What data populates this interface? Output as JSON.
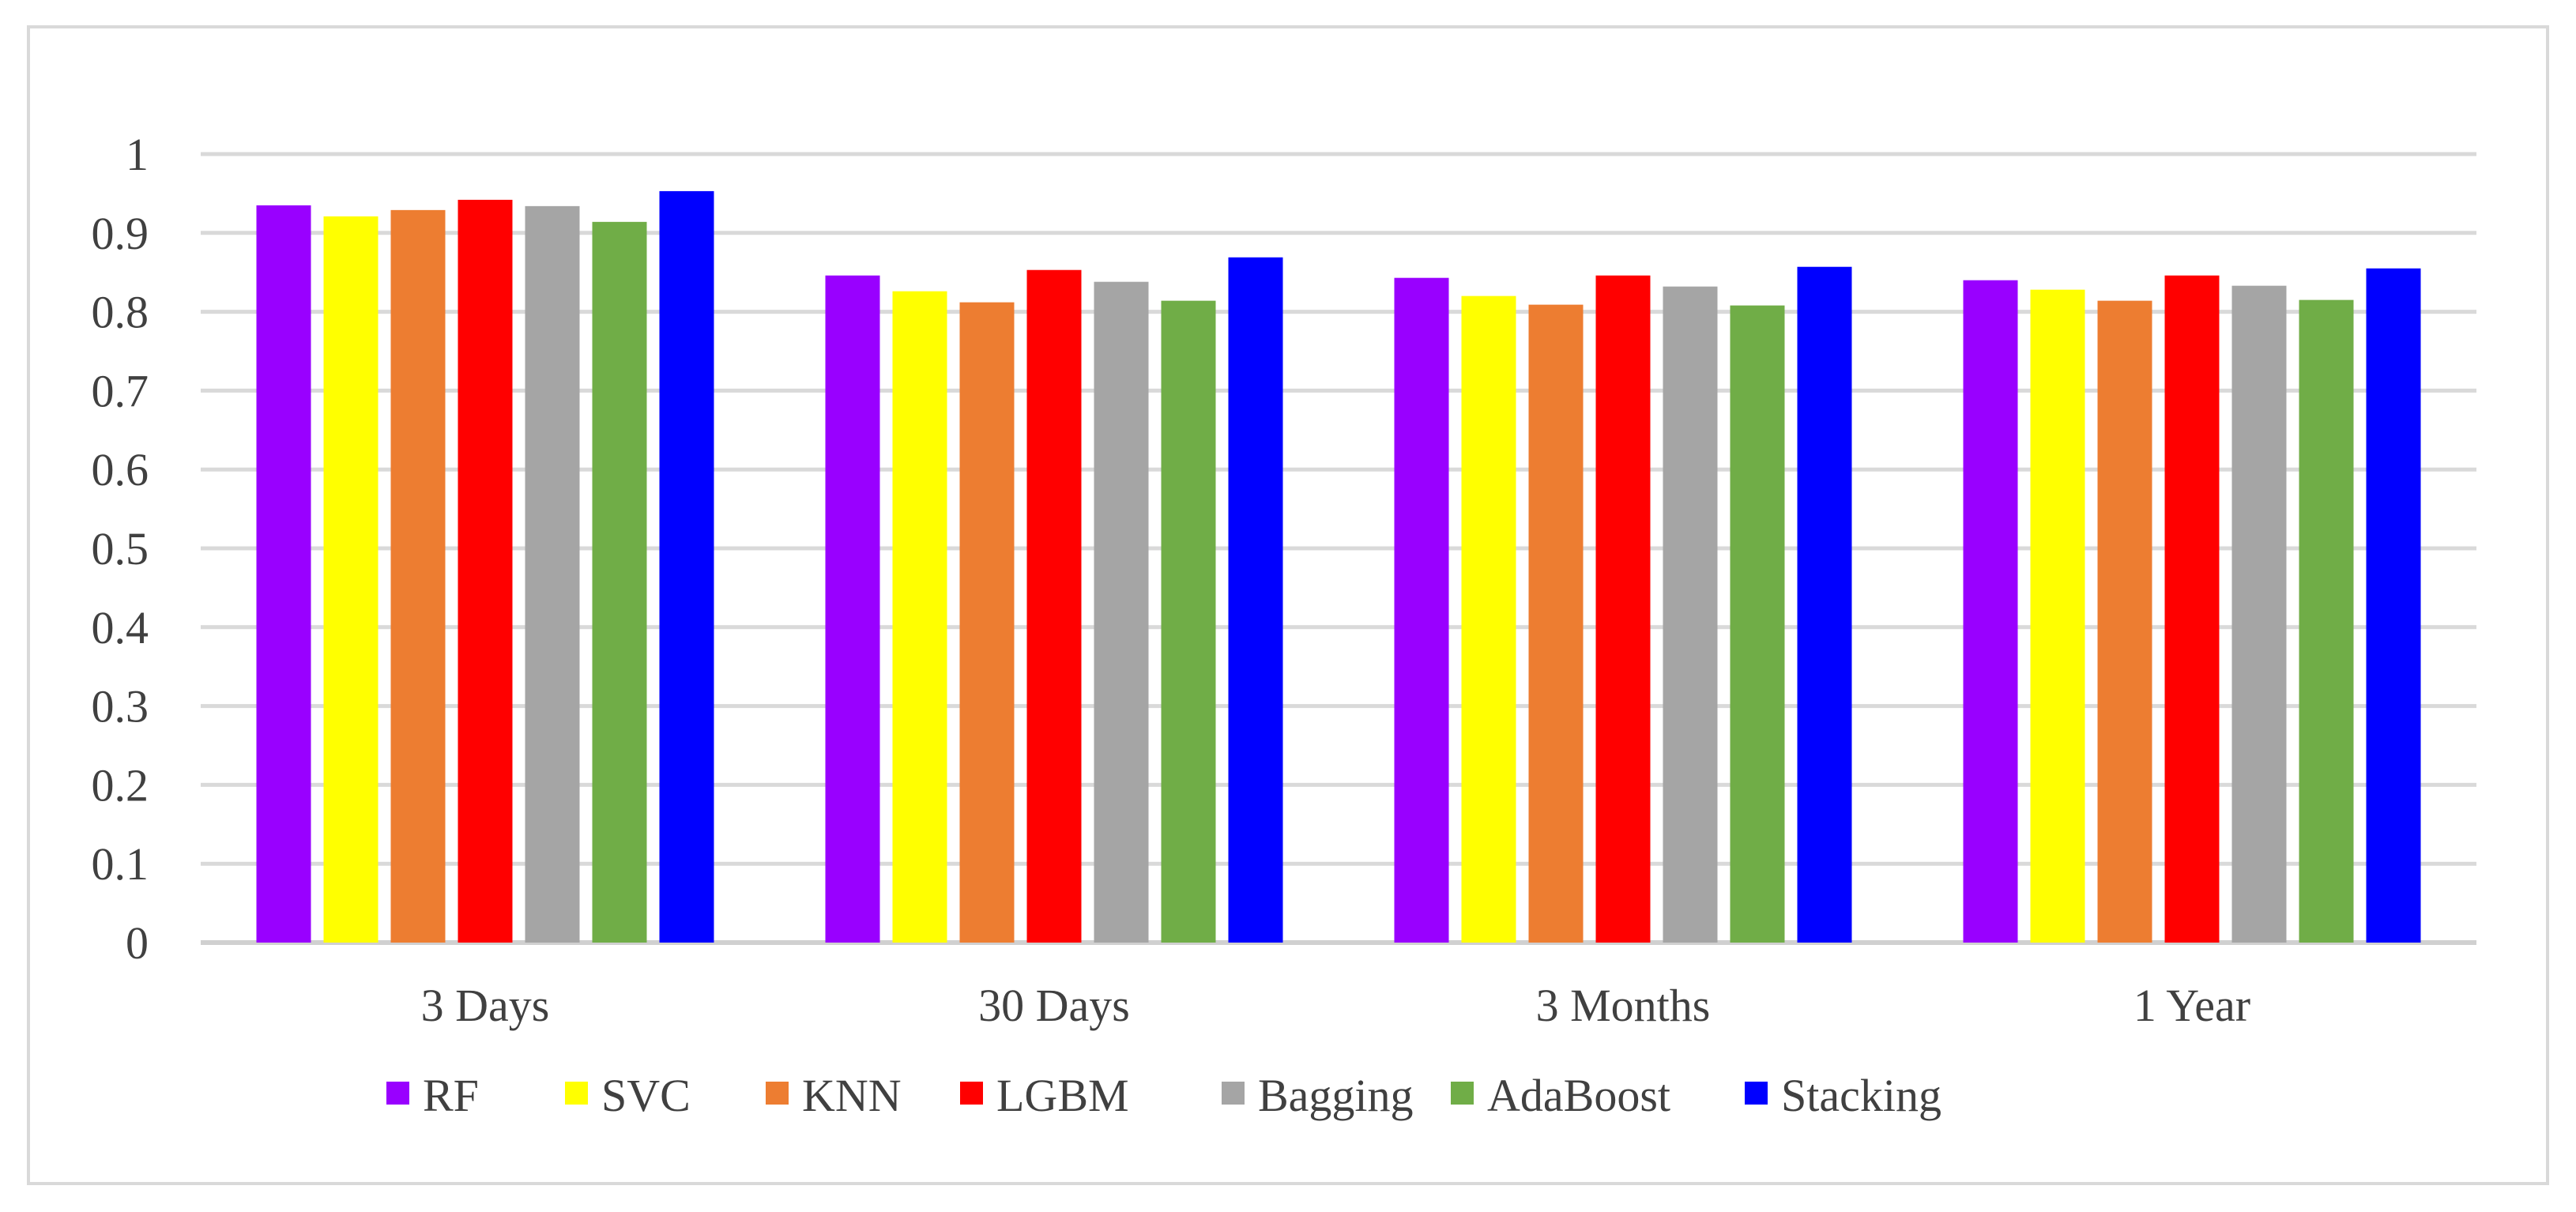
{
  "chart_data": {
    "type": "bar",
    "title": "",
    "xlabel": "",
    "ylabel": "",
    "categories": [
      "3 Days",
      "30 Days",
      "3 Months",
      "1 Year"
    ],
    "ylim": [
      0,
      1
    ],
    "yticks": [
      "0",
      "0.1",
      "0.2",
      "0.3",
      "0.4",
      "0.5",
      "0.6",
      "0.7",
      "0.8",
      "0.9",
      "1"
    ],
    "grid": true,
    "legend_position": "bottom",
    "series": [
      {
        "name": "RF",
        "color": "#9900FF",
        "values": [
          0.935,
          0.846,
          0.843,
          0.84
        ]
      },
      {
        "name": "SVC",
        "color": "#FFFF00",
        "values": [
          0.921,
          0.826,
          0.82,
          0.828
        ]
      },
      {
        "name": "KNN",
        "color": "#ED7D31",
        "values": [
          0.929,
          0.812,
          0.809,
          0.814
        ]
      },
      {
        "name": "LGBM",
        "color": "#FF0000",
        "values": [
          0.942,
          0.853,
          0.846,
          0.846
        ]
      },
      {
        "name": "Bagging",
        "color": "#A5A5A5",
        "values": [
          0.934,
          0.838,
          0.832,
          0.833
        ]
      },
      {
        "name": "AdaBoost",
        "color": "#70AD47",
        "values": [
          0.914,
          0.814,
          0.808,
          0.815
        ]
      },
      {
        "name": "Stacking",
        "color": "#0000FF",
        "values": [
          0.953,
          0.869,
          0.857,
          0.855
        ]
      }
    ]
  }
}
